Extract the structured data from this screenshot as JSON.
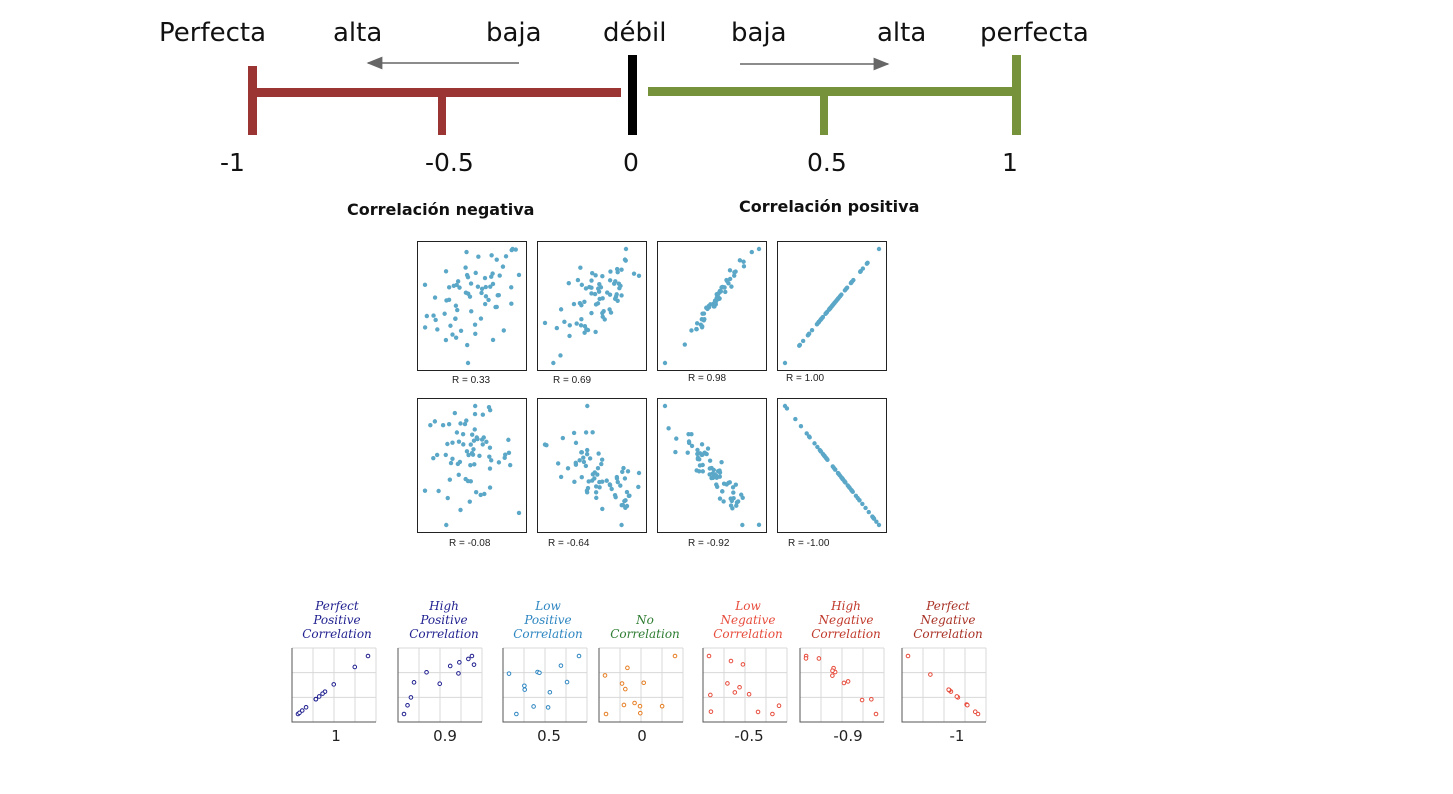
{
  "scale": {
    "words": [
      "Perfecta",
      "alta",
      "baja",
      "débil",
      "baja",
      "alta",
      "perfecta"
    ],
    "ticks": [
      "-1",
      "-0.5",
      "0",
      "0.5",
      "1"
    ],
    "colors": {
      "negative": "#9b3533",
      "neutral": "#000000",
      "positive": "#76933c",
      "arrow": "#666666"
    }
  },
  "headings": {
    "negative": "Correlación negativa",
    "positive": "Correlación positiva"
  },
  "panels": {
    "top_labels": [
      "R = 0.33",
      "R = 0.69",
      "R = 0.98",
      "R = 1.00"
    ],
    "bottom_labels": [
      "R = -0.08",
      "R = -0.64",
      "R = -0.92",
      "R = -1.00"
    ],
    "point_color": "#5ba7c7"
  },
  "mini": [
    {
      "title": "Perfect\nPositive\nCorrelation",
      "value": "1",
      "color": "#1f1f8f"
    },
    {
      "title": "High\nPositive\nCorrelation",
      "value": "0.9",
      "color": "#1f1f8f"
    },
    {
      "title": "Low\nPositive\nCorrelation",
      "value": "0.5",
      "color": "#2e86c1"
    },
    {
      "title": "No\nCorrelation",
      "value": "0",
      "color": "#2e7d32"
    },
    {
      "title": "Low\nNegative\nCorrelation",
      "value": "-0.5",
      "color": "#e74c3c"
    },
    {
      "title": "High\nNegative\nCorrelation",
      "value": "-0.9",
      "color": "#c0392b"
    },
    {
      "title": "Perfect\nNegative\nCorrelation",
      "value": "-1",
      "color": "#a93226"
    }
  ],
  "mini_point_colors": [
    "#1f1f8f",
    "#1f1f8f",
    "#2e86c1",
    "#e67e22",
    "#e74c3c",
    "#e74c3c",
    "#e74c3c"
  ]
}
